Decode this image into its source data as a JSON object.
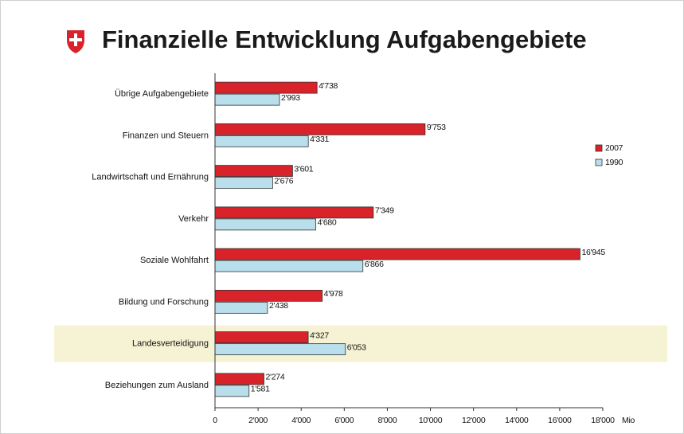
{
  "chart_data": {
    "type": "hbar",
    "title": "Finanzielle Entwicklung Aufgabengebiete",
    "categories": [
      "Übrige Aufgabengebiete",
      "Finanzen und Steuern",
      "Landwirtschaft und Ernährung",
      "Verkehr",
      "Soziale Wohlfahrt",
      "Bildung und Forschung",
      "Landesverteidigung",
      "Beziehungen zum Ausland"
    ],
    "series": [
      {
        "name": "2007",
        "color": "#d8232a",
        "values": [
          4738,
          9753,
          3601,
          7349,
          16945,
          4978,
          4327,
          2274
        ],
        "value_labels": [
          "4'738",
          "9'753",
          "3'601",
          "7'349",
          "16'945",
          "4'978",
          "4'327",
          "2'274"
        ]
      },
      {
        "name": "1990",
        "color": "#b9dfec",
        "values": [
          2993,
          4331,
          2676,
          4680,
          6866,
          2438,
          6053,
          1581
        ],
        "value_labels": [
          "2'993",
          "4'331",
          "2'676",
          "4'680",
          "6'866",
          "2'438",
          "6'053",
          "1'581"
        ]
      }
    ],
    "x_unit": "Mio",
    "xlim": [
      0,
      18000
    ],
    "xticks": [
      0,
      {
        "value": 2000,
        "label": "2'000"
      },
      {
        "value": 4000,
        "label": "4'000"
      },
      {
        "value": 6000,
        "label": "6'000"
      },
      {
        "value": 8000,
        "label": "8'000"
      },
      {
        "value": 10000,
        "label": "10'000"
      },
      {
        "value": 12000,
        "label": "12'000"
      },
      {
        "value": 14000,
        "label": "14'000"
      },
      {
        "value": 16000,
        "label": "16'000"
      },
      {
        "value": 18000,
        "label": "18'000"
      }
    ],
    "highlight_category_index": 6,
    "legend": "right"
  }
}
